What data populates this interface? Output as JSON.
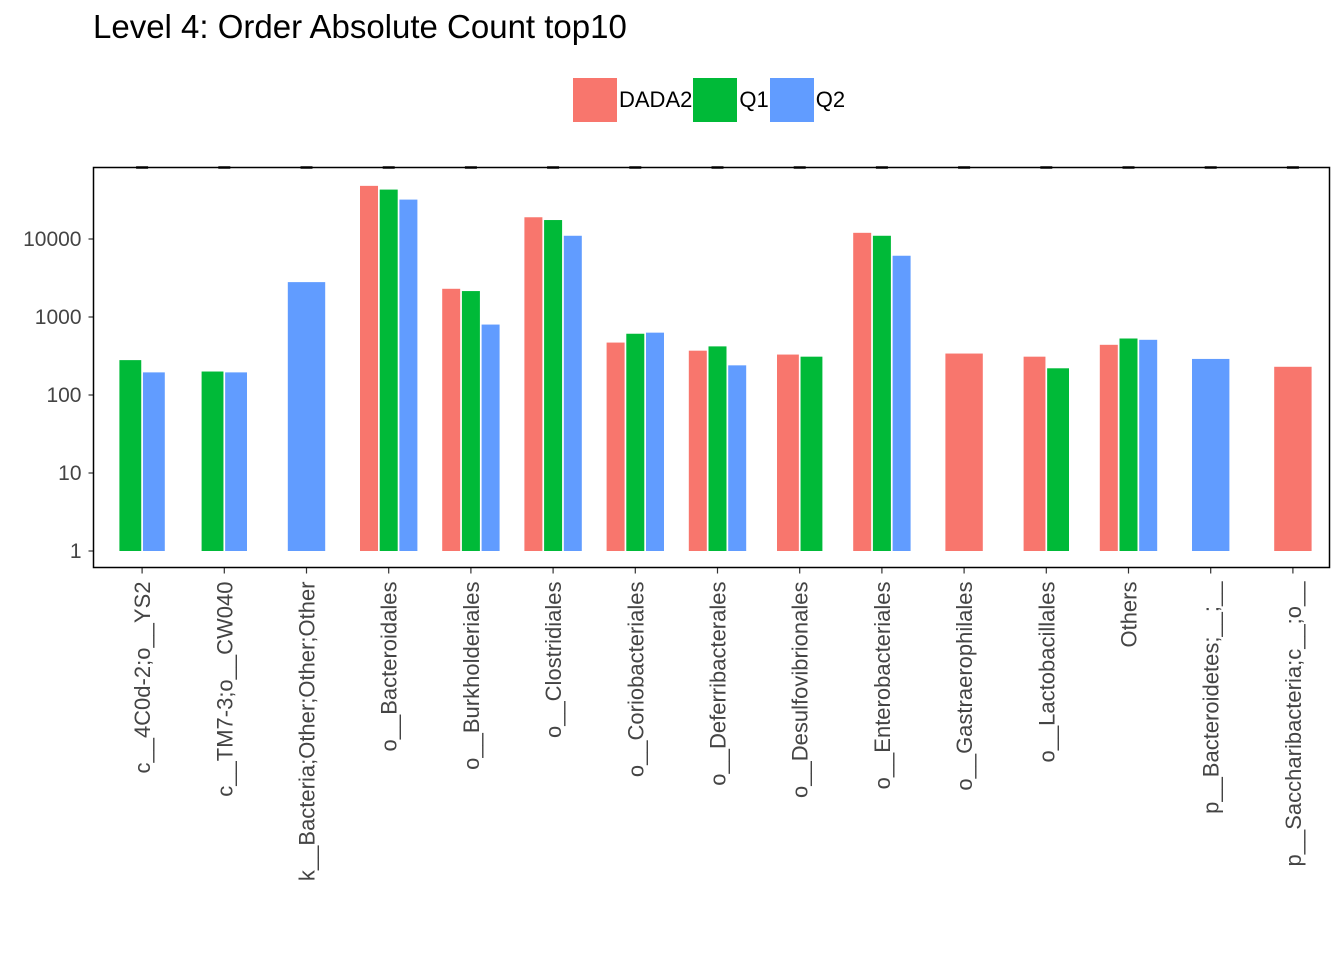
{
  "chart_data": {
    "type": "bar",
    "title": "Level 4: Order Absolute Count top10",
    "xlabel": "",
    "ylabel": "",
    "yscale": "log10",
    "ylim": [
      0.5,
      120000
    ],
    "yticks": [
      1,
      10,
      100,
      1000,
      10000
    ],
    "ytick_labels": [
      "1",
      "10",
      "100",
      "1000",
      "10000"
    ],
    "grid": false,
    "legend_position": "top",
    "categories": [
      "c__4C0d-2;o__YS2",
      "c__TM7-3;o__CW040",
      "k__Bacteria;Other;Other;Other",
      "o__Bacteroidales",
      "o__Burkholderiales",
      "o__Clostridiales",
      "o__Coriobacteriales",
      "o__Deferribacterales",
      "o__Desulfovibrionales",
      "o__Enterobacteriales",
      "o__Gastraerophilales",
      "o__Lactobacillales",
      "Others",
      "p__Bacteroidetes;__;__",
      "p__Saccharibacteria;c__;o__"
    ],
    "series": [
      {
        "name": "DADA2",
        "color": "#F8766D",
        "values": [
          null,
          null,
          null,
          48000,
          2300,
          19000,
          470,
          370,
          330,
          12000,
          340,
          310,
          440,
          null,
          230
        ]
      },
      {
        "name": "Q1",
        "color": "#00BA38",
        "values": [
          280,
          200,
          null,
          43000,
          2150,
          17500,
          610,
          420,
          310,
          11000,
          null,
          220,
          530,
          null,
          null
        ]
      },
      {
        "name": "Q2",
        "color": "#619CFF",
        "values": [
          195,
          195,
          2800,
          32000,
          800,
          11000,
          630,
          240,
          null,
          6100,
          null,
          null,
          510,
          290,
          null
        ]
      }
    ]
  }
}
